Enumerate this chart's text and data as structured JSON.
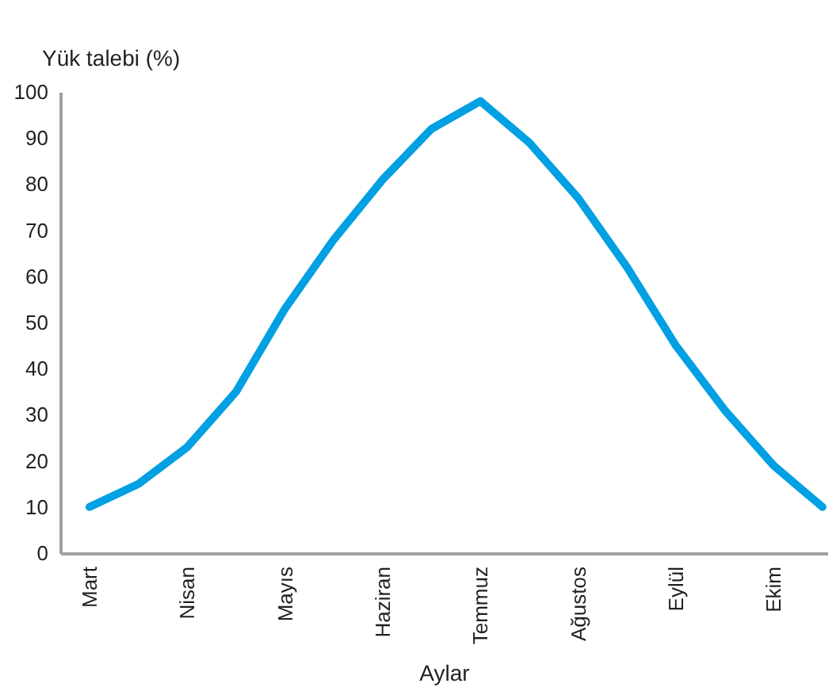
{
  "chart_data": {
    "type": "line",
    "xlabel": "Aylar",
    "ylabel": "Yük talebi (%)",
    "categories": [
      "Mart",
      null,
      "Nisan",
      null,
      "Mayıs",
      null,
      "Haziran",
      null,
      "Temmuz",
      null,
      "Ağustos",
      null,
      "Eylül",
      null,
      "Ekim",
      null
    ],
    "series": [
      {
        "color": "#00a0e3",
        "values": [
          10,
          15,
          23,
          35,
          53,
          68,
          81,
          92,
          98,
          89,
          77,
          62,
          45,
          31,
          19,
          10
        ]
      }
    ],
    "ylim": [
      0,
      100
    ],
    "yticks": [
      0,
      10,
      20,
      30,
      40,
      50,
      60,
      70,
      80,
      90,
      100
    ],
    "grid": false,
    "legend": false,
    "marker": "none",
    "line_style": "solid"
  }
}
